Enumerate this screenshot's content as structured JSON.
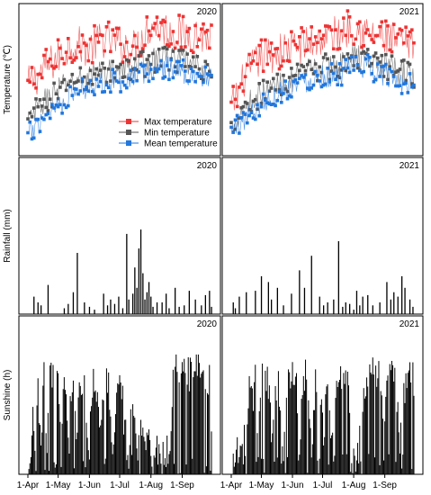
{
  "chart_data": {
    "type": "multi-panel",
    "years": [
      "2020",
      "2021"
    ],
    "x_tick_labels": [
      "1-Apr",
      "1-May",
      "1-Jun",
      "1-Jul",
      "1-Aug",
      "1-Sep"
    ],
    "date_range": [
      "1-Apr",
      "30-Sep"
    ],
    "panels": [
      {
        "key": "temperature",
        "type": "line",
        "ylabel": "Temperature (℃)",
        "legend_position": "lower-center (2020 panel)",
        "series": [
          {
            "name": "Max temperature",
            "color": "#ee3333",
            "marker": "square"
          },
          {
            "name": "Min temperature",
            "color": "#555555",
            "marker": "square"
          },
          {
            "name": "Mean temperature",
            "color": "#2277dd",
            "marker": "square"
          }
        ],
        "anchors": {
          "2020": {
            "x": [
              "1-Apr",
              "15-Apr",
              "1-May",
              "15-May",
              "1-Jun",
              "15-Jun",
              "1-Jul",
              "15-Jul",
              "1-Aug",
              "15-Aug",
              "1-Sep",
              "15-Sep",
              "30-Sep"
            ],
            "Max temperature": [
              22,
              25,
              28,
              31,
              30,
              32,
              31,
              30,
              35,
              34,
              33,
              33,
              32
            ],
            "Min temperature": [
              14,
              18,
              21,
              23,
              24,
              25,
              25,
              26,
              27,
              28,
              27,
              26,
              25
            ],
            "Mean temperature": [
              11,
              15,
              18,
              20,
              22,
              23,
              23,
              24,
              25,
              26,
              25,
              24,
              23
            ]
          },
          "2021": {
            "x": [
              "1-Apr",
              "15-Apr",
              "1-May",
              "15-May",
              "1-Jun",
              "15-Jun",
              "1-Jul",
              "15-Jul",
              "1-Aug",
              "15-Aug",
              "1-Sep",
              "15-Sep",
              "30-Sep"
            ],
            "Max temperature": [
              17,
              24,
              28,
              29,
              30,
              31,
              32,
              33,
              35,
              33,
              32,
              31,
              30
            ],
            "Min temperature": [
              13,
              18,
              20,
              22,
              23,
              25,
              26,
              26,
              28,
              28,
              26,
              25,
              24
            ],
            "Mean temperature": [
              12,
              15,
              18,
              20,
              22,
              23,
              24,
              24,
              26,
              26,
              24,
              23,
              22
            ]
          }
        },
        "ylim": [
          8,
          38
        ]
      },
      {
        "key": "rainfall",
        "type": "bar",
        "ylabel": "Rainfall (mm)",
        "ylim": [
          0,
          100
        ],
        "events": {
          "2020": [
            [
              6,
              12
            ],
            [
              10,
              8
            ],
            [
              13,
              6
            ],
            [
              20,
              20
            ],
            [
              36,
              4
            ],
            [
              40,
              7
            ],
            [
              45,
              15
            ],
            [
              49,
              42
            ],
            [
              56,
              8
            ],
            [
              61,
              5
            ],
            [
              66,
              3
            ],
            [
              75,
              14
            ],
            [
              79,
              6
            ],
            [
              82,
              10
            ],
            [
              86,
              7
            ],
            [
              90,
              12
            ],
            [
              94,
              4
            ],
            [
              98,
              55
            ],
            [
              100,
              10
            ],
            [
              104,
              14
            ],
            [
              106,
              32
            ],
            [
              108,
              18
            ],
            [
              110,
              45
            ],
            [
              112,
              58
            ],
            [
              114,
              28
            ],
            [
              116,
              10
            ],
            [
              118,
              15
            ],
            [
              120,
              22
            ],
            [
              122,
              12
            ],
            [
              124,
              5
            ],
            [
              128,
              8
            ],
            [
              133,
              8
            ],
            [
              137,
              14
            ],
            [
              140,
              4
            ],
            [
              146,
              18
            ],
            [
              150,
              5
            ],
            [
              155,
              6
            ],
            [
              160,
              16
            ],
            [
              166,
              10
            ],
            [
              172,
              6
            ],
            [
              176,
              13
            ],
            [
              180,
              16
            ],
            [
              182,
              5
            ]
          ],
          "2021": [
            [
              2,
              8
            ],
            [
              4,
              4
            ],
            [
              8,
              12
            ],
            [
              15,
              15
            ],
            [
              24,
              16
            ],
            [
              30,
              26
            ],
            [
              37,
              22
            ],
            [
              40,
              10
            ],
            [
              46,
              18
            ],
            [
              52,
              6
            ],
            [
              60,
              14
            ],
            [
              68,
              30
            ],
            [
              73,
              18
            ],
            [
              80,
              40
            ],
            [
              88,
              12
            ],
            [
              92,
              6
            ],
            [
              96,
              8
            ],
            [
              102,
              10
            ],
            [
              107,
              50
            ],
            [
              111,
              5
            ],
            [
              114,
              8
            ],
            [
              118,
              7
            ],
            [
              122,
              3
            ],
            [
              125,
              16
            ],
            [
              128,
              6
            ],
            [
              131,
              12
            ],
            [
              136,
              13
            ],
            [
              141,
              6
            ],
            [
              148,
              8
            ],
            [
              155,
              22
            ],
            [
              159,
              10
            ],
            [
              162,
              15
            ],
            [
              166,
              12
            ],
            [
              170,
              26
            ],
            [
              173,
              18
            ],
            [
              178,
              10
            ],
            [
              181,
              5
            ]
          ]
        }
      },
      {
        "key": "sunshine",
        "type": "bar",
        "ylabel": "Sunshine (h)",
        "ylim": [
          0,
          14
        ],
        "profile": {
          "2020": [
            [
              0,
              0
            ],
            [
              2,
              2
            ],
            [
              5,
              5
            ],
            [
              8,
              1
            ],
            [
              10,
              9
            ],
            [
              13,
              2
            ],
            [
              16,
              9.5
            ],
            [
              19,
              3
            ],
            [
              22,
              10
            ],
            [
              26,
              9.5
            ],
            [
              30,
              10
            ],
            [
              33,
              4
            ],
            [
              36,
              10
            ],
            [
              40,
              3
            ],
            [
              44,
              9
            ],
            [
              48,
              5
            ],
            [
              52,
              8
            ],
            [
              56,
              9.5
            ],
            [
              60,
              1
            ],
            [
              64,
              9
            ],
            [
              68,
              8.5
            ],
            [
              72,
              3
            ],
            [
              76,
              10
            ],
            [
              80,
              9
            ],
            [
              84,
              2
            ],
            [
              88,
              8
            ],
            [
              92,
              10
            ],
            [
              96,
              4
            ],
            [
              100,
              2
            ],
            [
              104,
              8
            ],
            [
              108,
              1
            ],
            [
              112,
              5
            ],
            [
              116,
              2
            ],
            [
              120,
              3
            ],
            [
              124,
              1
            ],
            [
              128,
              4
            ],
            [
              132,
              0.5
            ],
            [
              136,
              3
            ],
            [
              140,
              1
            ],
            [
              144,
              10.5
            ],
            [
              148,
              11
            ],
            [
              152,
              10
            ],
            [
              156,
              10.5
            ],
            [
              160,
              9.5
            ],
            [
              164,
              10
            ],
            [
              168,
              11
            ],
            [
              172,
              10
            ],
            [
              176,
              8.5
            ],
            [
              180,
              9
            ],
            [
              183,
              2
            ]
          ],
          "2021": [
            [
              0,
              0
            ],
            [
              3,
              1
            ],
            [
              6,
              3
            ],
            [
              9,
              2
            ],
            [
              12,
              5
            ],
            [
              15,
              1
            ],
            [
              18,
              8
            ],
            [
              21,
              7
            ],
            [
              24,
              9
            ],
            [
              27,
              3
            ],
            [
              30,
              9.5
            ],
            [
              33,
              8
            ],
            [
              36,
              10
            ],
            [
              40,
              4
            ],
            [
              44,
              9
            ],
            [
              48,
              8
            ],
            [
              52,
              3
            ],
            [
              56,
              9
            ],
            [
              60,
              9.5
            ],
            [
              64,
              10
            ],
            [
              68,
              3
            ],
            [
              72,
              9
            ],
            [
              76,
              10
            ],
            [
              80,
              1
            ],
            [
              84,
              9
            ],
            [
              88,
              8
            ],
            [
              92,
              3
            ],
            [
              96,
              9
            ],
            [
              100,
              2
            ],
            [
              104,
              8
            ],
            [
              108,
              9.5
            ],
            [
              112,
              10
            ],
            [
              116,
              9
            ],
            [
              120,
              1
            ],
            [
              124,
              2
            ],
            [
              128,
              6
            ],
            [
              132,
              8
            ],
            [
              136,
              10
            ],
            [
              140,
              11
            ],
            [
              144,
              9
            ],
            [
              148,
              10
            ],
            [
              152,
              2
            ],
            [
              156,
              10
            ],
            [
              160,
              10.5
            ],
            [
              164,
              9
            ],
            [
              168,
              3
            ],
            [
              172,
              8
            ],
            [
              176,
              9
            ],
            [
              180,
              9.5
            ],
            [
              183,
              8
            ]
          ]
        }
      }
    ]
  }
}
